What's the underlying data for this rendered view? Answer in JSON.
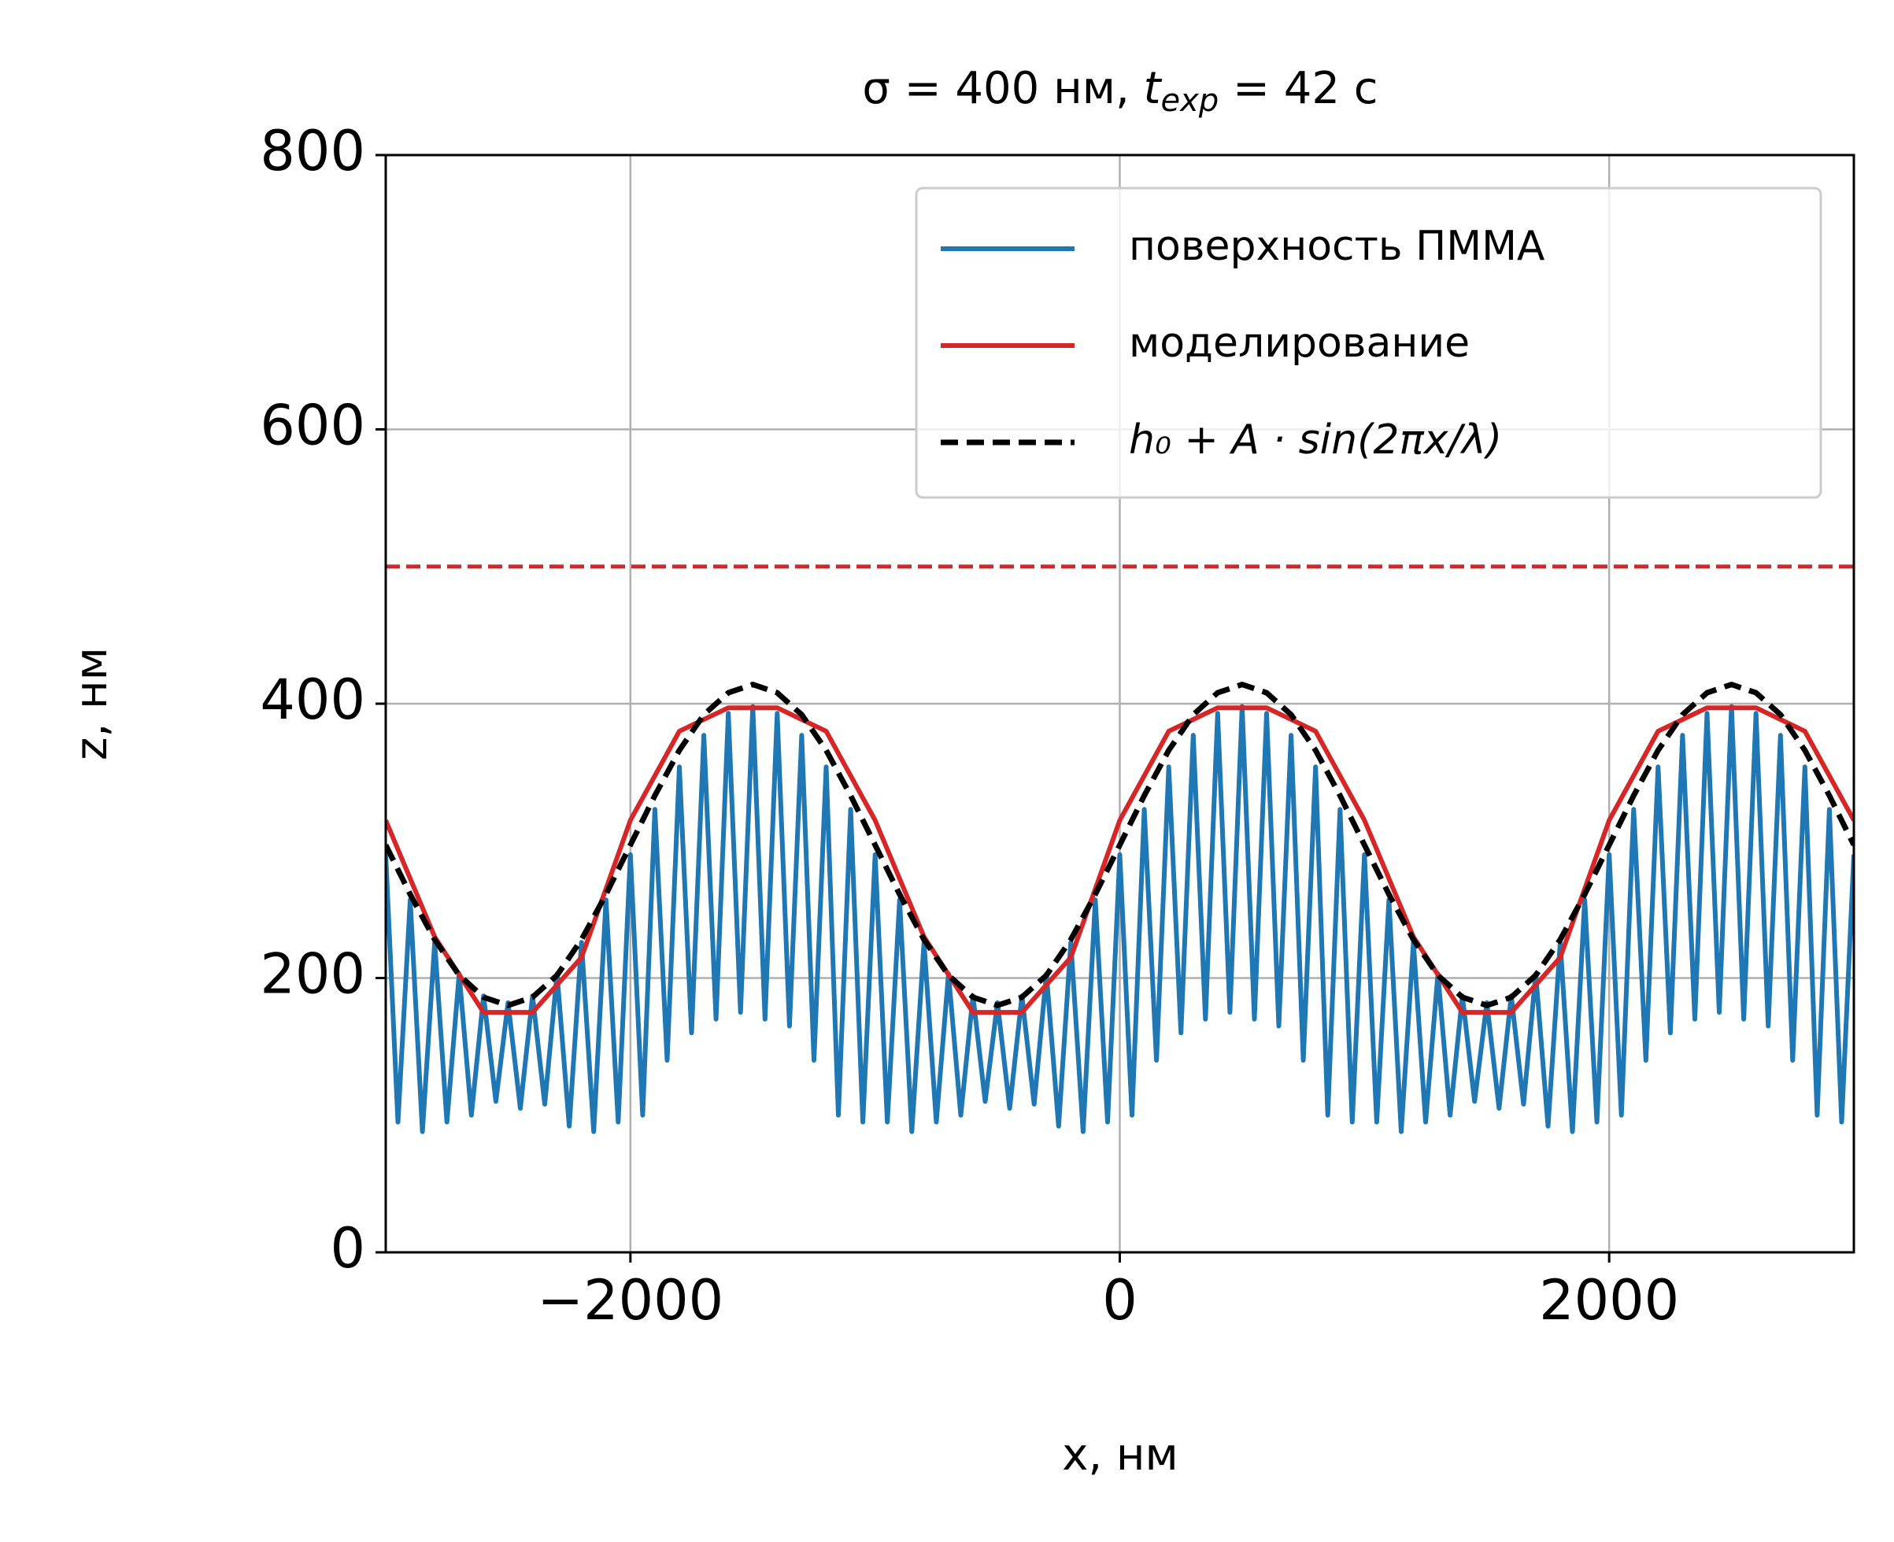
{
  "chart_data": {
    "type": "line",
    "title": [
      "σ = 400 нм, ",
      "t",
      "exp",
      " = 42 с"
    ],
    "xlabel": "x, нм",
    "ylabel": "z, нм",
    "xlim": [
      -3000,
      3000
    ],
    "ylim": [
      0,
      800
    ],
    "xticks": [
      {
        "value": -2000,
        "label": "−2000"
      },
      0,
      2000
    ],
    "yticks": [
      0,
      200,
      400,
      600,
      800
    ],
    "grid": true,
    "legend": "upper right",
    "hline": {
      "y": 500,
      "color": "#d62728"
    },
    "series": [
      {
        "name": "поверхность ПММА",
        "color": "#1f77b4",
        "x": [
          -3000,
          -2950,
          -2900,
          -2850,
          -2800,
          -2750,
          -2700,
          -2650,
          -2600,
          -2550,
          -2500,
          -2450,
          -2400,
          -2350,
          -2300,
          -2250,
          -2200,
          -2150,
          -2100,
          -2050,
          -2000,
          -1950,
          -1900,
          -1850,
          -1800,
          -1750,
          -1700,
          -1650,
          -1600,
          -1550,
          -1500,
          -1450,
          -1400,
          -1350,
          -1300,
          -1250,
          -1200,
          -1150,
          -1100,
          -1050,
          -1000,
          -950,
          -900,
          -850,
          -800,
          -750,
          -700,
          -650,
          -600,
          -550,
          -500,
          -450,
          -400,
          -350,
          -300,
          -250,
          -200,
          -150,
          -100,
          -50,
          0,
          50,
          100,
          150,
          200,
          250,
          300,
          350,
          400,
          450,
          500,
          550,
          600,
          650,
          700,
          750,
          800,
          850,
          900,
          950,
          1000,
          1050,
          1100,
          1150,
          1200,
          1250,
          1300,
          1350,
          1400,
          1450,
          1500,
          1550,
          1600,
          1650,
          1700,
          1750,
          1800,
          1850,
          1900,
          1950,
          2000,
          2050,
          2100,
          2150,
          2200,
          2250,
          2300,
          2350,
          2400,
          2450,
          2500,
          2550,
          2600,
          2650,
          2700,
          2750,
          2800,
          2850,
          2900,
          2950,
          3000
        ],
        "values": [
          290,
          95,
          257,
          88,
          226,
          95,
          203,
          100,
          187,
          110,
          182,
          105,
          187,
          108,
          203,
          92,
          226,
          88,
          257,
          95,
          290,
          100,
          323,
          140,
          354,
          160,
          377,
          170,
          393,
          175,
          398,
          170,
          393,
          165,
          377,
          140,
          354,
          100,
          323,
          95,
          290,
          95,
          257,
          88,
          226,
          95,
          203,
          100,
          187,
          110,
          182,
          105,
          187,
          108,
          203,
          92,
          226,
          88,
          257,
          95,
          290,
          100,
          323,
          140,
          354,
          160,
          377,
          170,
          393,
          175,
          398,
          170,
          393,
          165,
          377,
          140,
          354,
          100,
          323,
          95,
          290,
          95,
          257,
          88,
          226,
          95,
          203,
          100,
          187,
          110,
          182,
          105,
          187,
          108,
          203,
          92,
          226,
          88,
          257,
          95,
          290,
          100,
          323,
          140,
          354,
          160,
          377,
          170,
          393,
          175,
          398,
          170,
          393,
          165,
          377,
          140,
          354,
          100,
          323,
          95,
          290
        ]
      },
      {
        "name": "моделирование",
        "color": "#d62728",
        "x": [
          -3000,
          -2800,
          -2600,
          -2400,
          -2200,
          -2000,
          -1800,
          -1600,
          -1400,
          -1200,
          -1000,
          -800,
          -600,
          -400,
          -200,
          0,
          200,
          400,
          600,
          800,
          1000,
          1200,
          1400,
          1600,
          1800,
          2000,
          2200,
          2400,
          2600,
          2800,
          3000
        ],
        "values": [
          315,
          230,
          175,
          175,
          215,
          315,
          380,
          397,
          397,
          380,
          315,
          230,
          175,
          175,
          215,
          315,
          380,
          397,
          397,
          380,
          315,
          230,
          175,
          175,
          215,
          315,
          380,
          397,
          397,
          380,
          315
        ]
      },
      {
        "name": "h₀ + A · sin(2πx/λ)",
        "color": "#000000",
        "dashed": true,
        "x": [
          -3000,
          -2900,
          -2800,
          -2700,
          -2600,
          -2500,
          -2400,
          -2300,
          -2200,
          -2100,
          -2000,
          -1900,
          -1800,
          -1700,
          -1600,
          -1500,
          -1400,
          -1300,
          -1200,
          -1100,
          -1000,
          -900,
          -800,
          -700,
          -600,
          -500,
          -400,
          -300,
          -200,
          -100,
          0,
          100,
          200,
          300,
          400,
          500,
          600,
          700,
          800,
          900,
          1000,
          1100,
          1200,
          1300,
          1400,
          1500,
          1600,
          1700,
          1800,
          1900,
          2000,
          2100,
          2200,
          2300,
          2400,
          2500,
          2600,
          2700,
          2800,
          2900,
          3000
        ],
        "values": [
          297,
          261,
          228,
          202,
          186,
          180,
          186,
          202,
          228,
          261,
          297,
          333,
          366,
          392,
          408,
          414,
          408,
          392,
          366,
          333,
          297,
          261,
          228,
          202,
          186,
          180,
          186,
          202,
          228,
          261,
          297,
          333,
          366,
          392,
          408,
          414,
          408,
          392,
          366,
          333,
          297,
          261,
          228,
          202,
          186,
          180,
          186,
          202,
          228,
          261,
          297,
          333,
          366,
          392,
          408,
          414,
          408,
          392,
          366,
          333,
          297
        ]
      }
    ]
  }
}
